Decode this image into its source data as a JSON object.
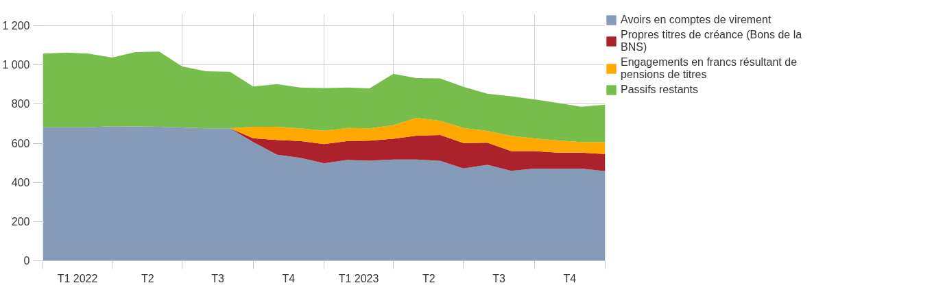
{
  "chart_data": {
    "type": "area",
    "stacked": true,
    "x": [
      "2021-12-31",
      "2022-01-31",
      "2022-02-28",
      "2022-03-31",
      "2022-04-30",
      "2022-05-31",
      "2022-06-30",
      "2022-07-31",
      "2022-08-31",
      "2022-09-30",
      "2022-10-31",
      "2022-11-30",
      "2022-12-31",
      "2023-01-31",
      "2023-02-28",
      "2023-03-31",
      "2023-04-30",
      "2023-05-31",
      "2023-06-30",
      "2023-07-31",
      "2023-08-31",
      "2023-09-30",
      "2023-10-31",
      "2023-11-30",
      "2023-12-31"
    ],
    "series": [
      {
        "name": "Avoirs en comptes de virement",
        "color": "#869bb8",
        "values": [
          682,
          682,
          682,
          687,
          686,
          684,
          681,
          676,
          676,
          606,
          542,
          526,
          498,
          515,
          511,
          517,
          517,
          510,
          472,
          490,
          459,
          471,
          470,
          471,
          458
        ]
      },
      {
        "name": "Propres titres de créance (Bons de la BNS)",
        "color": "#ab222c",
        "values": [
          0,
          0,
          0,
          0,
          0,
          0,
          0,
          0,
          0,
          20,
          75,
          86,
          98,
          97,
          102,
          106,
          122,
          132,
          129,
          113,
          101,
          89,
          82,
          81,
          87
        ]
      },
      {
        "name": "Engagements en francs résultant de pensions de titres",
        "color": "#fea800",
        "values": [
          0,
          0,
          0,
          0,
          0,
          0,
          0,
          0,
          0,
          58,
          67,
          64,
          68,
          66,
          63,
          69,
          91,
          73,
          77,
          60,
          78,
          65,
          62,
          54,
          61
        ]
      },
      {
        "name": "Passifs restants",
        "color": "#77bd4b",
        "values": [
          376,
          381,
          376,
          351,
          380,
          384,
          311,
          292,
          289,
          206,
          218,
          209,
          218,
          207,
          204,
          263,
          203,
          216,
          210,
          190,
          202,
          199,
          192,
          181,
          191
        ]
      }
    ],
    "xlim": [
      "2021-12-31",
      "2023-12-31"
    ],
    "xticks": [
      {
        "value": "2021-12-31",
        "label": null
      },
      {
        "value": "2022-02-14",
        "label": "T1 2022"
      },
      {
        "value": "2022-03-31",
        "label": null
      },
      {
        "value": "2022-05-16",
        "label": "T2"
      },
      {
        "value": "2022-06-30",
        "label": null
      },
      {
        "value": "2022-08-15",
        "label": "T3"
      },
      {
        "value": "2022-09-30",
        "label": null
      },
      {
        "value": "2022-11-15",
        "label": "T4"
      },
      {
        "value": "2022-12-31",
        "label": null
      },
      {
        "value": "2023-02-14",
        "label": "T1 2023"
      },
      {
        "value": "2023-03-31",
        "label": null
      },
      {
        "value": "2023-05-16",
        "label": "T2"
      },
      {
        "value": "2023-06-30",
        "label": null
      },
      {
        "value": "2023-08-15",
        "label": "T3"
      },
      {
        "value": "2023-09-30",
        "label": null
      },
      {
        "value": "2023-11-15",
        "label": "T4"
      },
      {
        "value": "2023-12-31",
        "label": null
      }
    ],
    "ylim": [
      0,
      1260
    ],
    "yticks": [
      0,
      200,
      400,
      600,
      800,
      {
        "value": 1000,
        "label": "1 000"
      },
      {
        "value": 1200,
        "label": "1 200"
      }
    ],
    "grid": true,
    "legend": "top right"
  }
}
